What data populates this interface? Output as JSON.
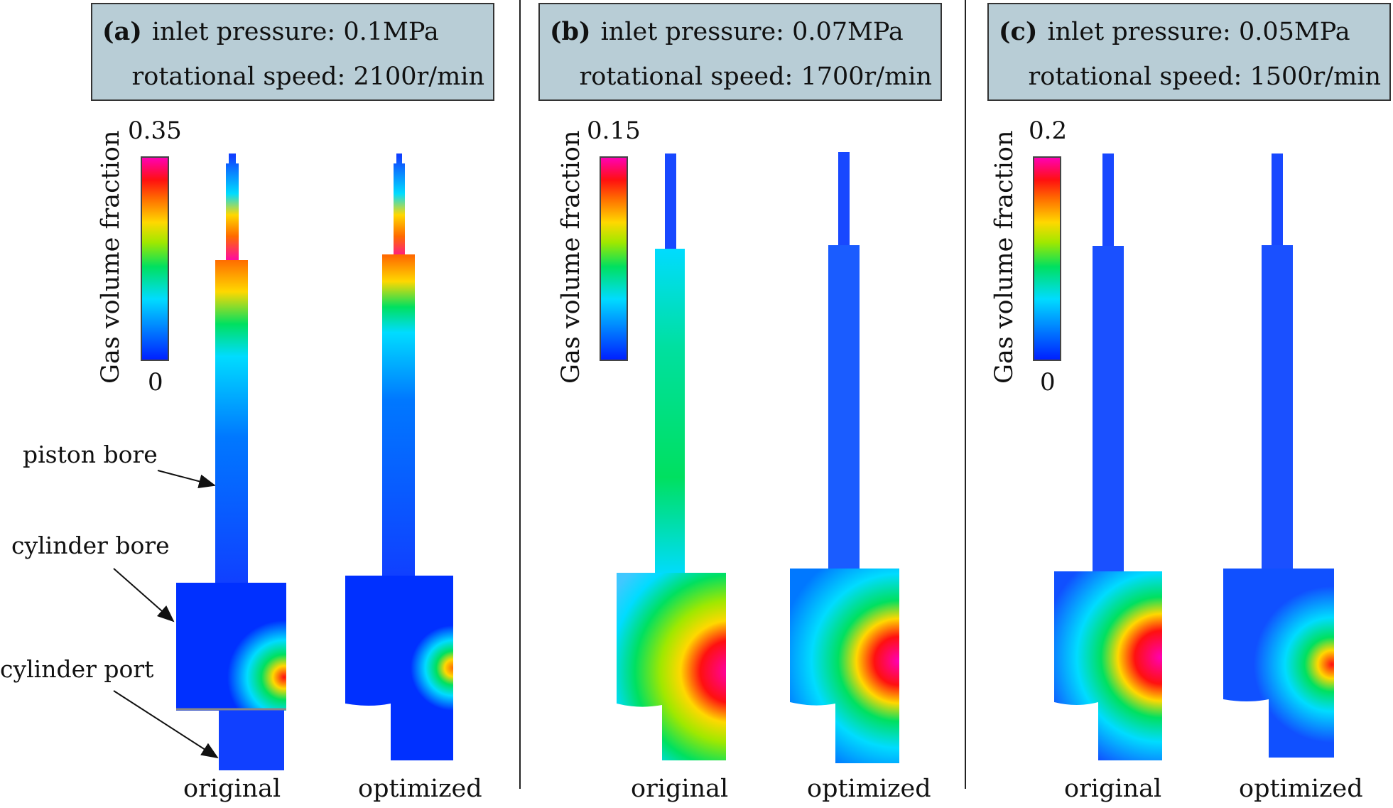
{
  "figure": {
    "colorbar_label": "Gas volume fraction",
    "colorbar_min": "0",
    "case_labels": [
      "original",
      "optimized"
    ],
    "annotations": {
      "piston_bore": "piston bore",
      "cylinder_bore": "cylinder bore",
      "cylinder_port": "cylinder port"
    },
    "panels": [
      {
        "tag": "(a)",
        "pressure_label": "inlet pressure:",
        "pressure_value": "0.1MPa",
        "speed_label": "rotational speed:",
        "speed_value": "2100r/min",
        "colorbar_max": "0.35"
      },
      {
        "tag": "(b)",
        "pressure_label": "inlet pressure:",
        "pressure_value": "0.07MPa",
        "speed_label": "rotational speed:",
        "speed_value": "1700r/min",
        "colorbar_max": "0.15"
      },
      {
        "tag": "(c)",
        "pressure_label": "inlet pressure:",
        "pressure_value": "0.05MPa",
        "speed_label": "rotational speed:",
        "speed_value": "1500r/min",
        "colorbar_max": "0.2"
      }
    ],
    "colors": {
      "header_bg": "#b8cdd6",
      "scale": [
        "#0020ff",
        "#0078ff",
        "#00dcff",
        "#00e060",
        "#a0e800",
        "#ffd800",
        "#ff6a00",
        "#ff1010",
        "#ff00b4"
      ]
    }
  }
}
